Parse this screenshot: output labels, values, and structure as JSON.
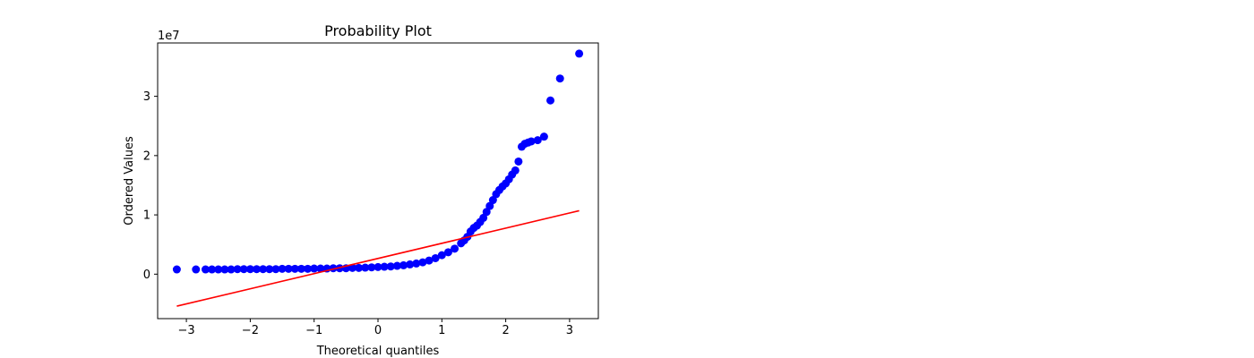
{
  "chart_data": {
    "type": "scatter",
    "title": "Probability Plot",
    "xlabel": "Theoretical quantiles",
    "ylabel": "Ordered Values",
    "y_offset_text": "1e7",
    "xlim": [
      -3.45,
      3.45
    ],
    "ylim": [
      -7500000,
      39000000
    ],
    "x_ticks": [
      -3,
      -2,
      -1,
      0,
      1,
      2,
      3
    ],
    "x_tick_labels": [
      "−3",
      "−2",
      "−1",
      "0",
      "1",
      "2",
      "3"
    ],
    "y_ticks": [
      0,
      10000000,
      20000000,
      30000000
    ],
    "y_tick_labels": [
      "0",
      "1",
      "2",
      "3"
    ],
    "grid": false,
    "legend": "none",
    "series": [
      {
        "marker_color": "#0000ff",
        "x": [
          -3.15,
          -2.85,
          -2.7,
          -2.6,
          -2.5,
          -2.4,
          -2.3,
          -2.2,
          -2.1,
          -2.0,
          -1.9,
          -1.8,
          -1.7,
          -1.6,
          -1.5,
          -1.4,
          -1.3,
          -1.2,
          -1.1,
          -1.0,
          -0.9,
          -0.8,
          -0.7,
          -0.6,
          -0.5,
          -0.4,
          -0.3,
          -0.2,
          -0.1,
          0.0,
          0.1,
          0.2,
          0.3,
          0.4,
          0.5,
          0.6,
          0.7,
          0.8,
          0.9,
          1.0,
          1.1,
          1.2,
          1.3,
          1.35,
          1.4,
          1.45,
          1.5,
          1.55,
          1.6,
          1.65,
          1.7,
          1.75,
          1.8,
          1.85,
          1.9,
          1.95,
          2.0,
          2.05,
          2.1,
          2.15,
          2.2,
          2.25,
          2.3,
          2.35,
          2.4,
          2.5,
          2.6,
          2.7,
          2.85,
          3.15
        ],
        "y": [
          800000,
          800000,
          800000,
          800000,
          800000,
          800000,
          800000,
          850000,
          850000,
          850000,
          850000,
          850000,
          850000,
          850000,
          900000,
          900000,
          900000,
          900000,
          900000,
          950000,
          950000,
          950000,
          1000000,
          1000000,
          1000000,
          1050000,
          1050000,
          1100000,
          1150000,
          1200000,
          1250000,
          1300000,
          1400000,
          1500000,
          1650000,
          1800000,
          2000000,
          2300000,
          2700000,
          3200000,
          3700000,
          4300000,
          5200000,
          5700000,
          6300000,
          7200000,
          7800000,
          8200000,
          8800000,
          9500000,
          10500000,
          11500000,
          12500000,
          13500000,
          14200000,
          14800000,
          15300000,
          16000000,
          16800000,
          17500000,
          19000000,
          21500000,
          22000000,
          22200000,
          22400000,
          22600000,
          23200000,
          29300000,
          33000000,
          37200000
        ]
      },
      {
        "line_color": "#ff0000",
        "x": [
          -3.15,
          3.15
        ],
        "y": [
          -5400000,
          10700000
        ]
      }
    ]
  }
}
